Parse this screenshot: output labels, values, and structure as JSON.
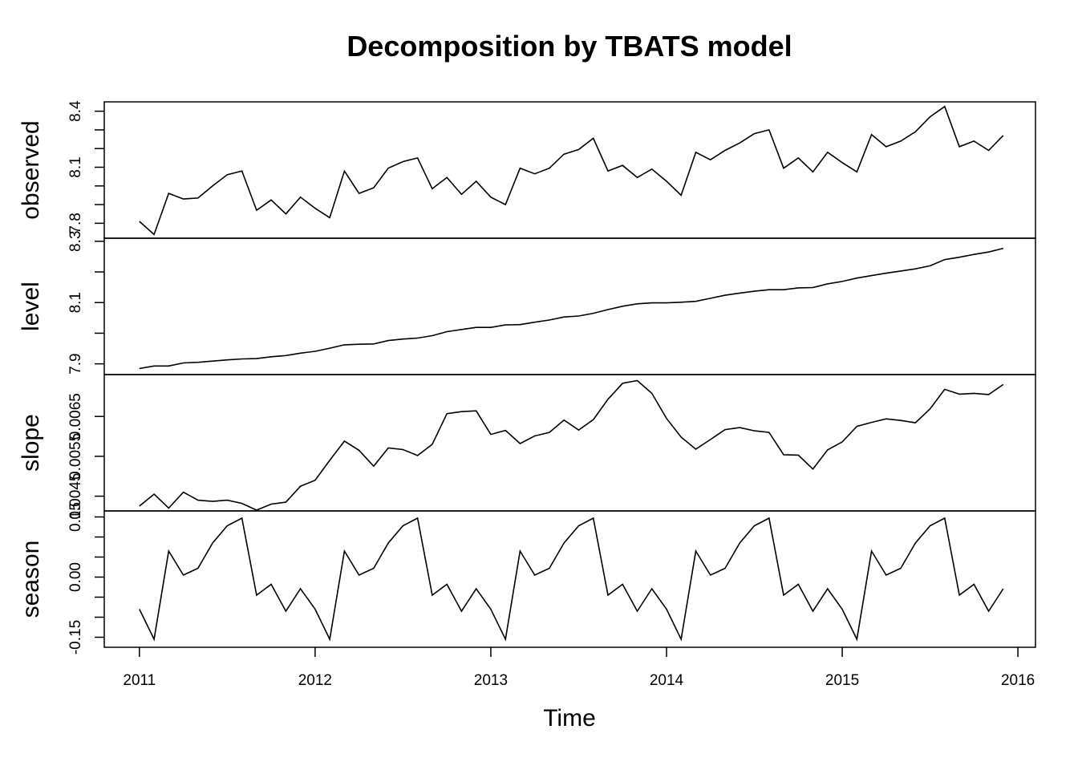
{
  "chart_data": {
    "type": "line",
    "title": "Decomposition by TBATS model",
    "xlabel": "Time",
    "x_ticks": [
      "2011",
      "2012",
      "2013",
      "2014",
      "2015",
      "2016"
    ],
    "xlim": [
      2011,
      2016
    ],
    "x": [
      2011.0,
      2011.0833,
      2011.1667,
      2011.25,
      2011.3333,
      2011.4167,
      2011.5,
      2011.5833,
      2011.6667,
      2011.75,
      2011.8333,
      2011.9167,
      2012.0,
      2012.0833,
      2012.1667,
      2012.25,
      2012.3333,
      2012.4167,
      2012.5,
      2012.5833,
      2012.6667,
      2012.75,
      2012.8333,
      2012.9167,
      2013.0,
      2013.0833,
      2013.1667,
      2013.25,
      2013.3333,
      2013.4167,
      2013.5,
      2013.5833,
      2013.6667,
      2013.75,
      2013.8333,
      2013.9167,
      2014.0,
      2014.0833,
      2014.1667,
      2014.25,
      2014.3333,
      2014.4167,
      2014.5,
      2014.5833,
      2014.6667,
      2014.75,
      2014.8333,
      2014.9167,
      2015.0,
      2015.0833,
      2015.1667,
      2015.25,
      2015.3333,
      2015.4167,
      2015.5,
      2015.5833,
      2015.6667,
      2015.75,
      2015.8333,
      2015.9167
    ],
    "panels": [
      {
        "name": "observed",
        "ylim": [
          7.72,
          8.45
        ],
        "tick_values": [
          7.8,
          7.9,
          8.0,
          8.1,
          8.2,
          8.3,
          8.4
        ],
        "tick_labels": [
          "7.8",
          "",
          "",
          "8.1",
          "",
          "",
          "8.4"
        ],
        "values": [
          7.81,
          7.74,
          7.96,
          7.93,
          7.935,
          8.0,
          8.06,
          8.08,
          7.87,
          7.925,
          7.85,
          7.94,
          7.88,
          7.83,
          8.08,
          7.96,
          7.99,
          8.095,
          8.13,
          8.15,
          7.985,
          8.045,
          7.955,
          8.025,
          7.94,
          7.9,
          8.095,
          8.065,
          8.095,
          8.17,
          8.195,
          8.255,
          8.08,
          8.11,
          8.045,
          8.09,
          8.025,
          7.95,
          8.18,
          8.14,
          8.19,
          8.23,
          8.28,
          8.3,
          8.095,
          8.15,
          8.075,
          8.18,
          8.125,
          8.075,
          8.275,
          8.21,
          8.24,
          8.29,
          8.37,
          8.425,
          8.21,
          8.24,
          8.19,
          8.27
        ]
      },
      {
        "name": "level",
        "ylim": [
          7.865,
          8.31
        ],
        "tick_values": [
          7.9,
          8.0,
          8.1,
          8.2,
          8.3
        ],
        "tick_labels": [
          "7.9",
          "",
          "8.1",
          "",
          "8.3"
        ],
        "values": [
          7.885,
          7.893,
          7.893,
          7.903,
          7.905,
          7.909,
          7.913,
          7.916,
          7.917,
          7.923,
          7.927,
          7.935,
          7.941,
          7.951,
          7.962,
          7.964,
          7.965,
          7.976,
          7.981,
          7.984,
          7.992,
          8.005,
          8.012,
          8.019,
          8.019,
          8.027,
          8.028,
          8.036,
          8.043,
          8.053,
          8.056,
          8.065,
          8.077,
          8.088,
          8.096,
          8.099,
          8.099,
          8.101,
          8.104,
          8.114,
          8.124,
          8.131,
          8.137,
          8.142,
          8.142,
          8.148,
          8.149,
          8.161,
          8.169,
          8.18,
          8.188,
          8.196,
          8.203,
          8.21,
          8.22,
          8.24,
          8.248,
          8.257,
          8.265,
          8.277
        ]
      },
      {
        "name": "slope",
        "ylim": [
          0.00413,
          0.00755
        ],
        "tick_values": [
          0.0045,
          0.0055,
          0.0065
        ],
        "tick_labels": [
          "0.0045",
          "0.0055",
          "0.0065"
        ],
        "values": [
          0.00425,
          0.00455,
          0.0042,
          0.0046,
          0.0044,
          0.00437,
          0.0044,
          0.00432,
          0.00415,
          0.0043,
          0.00435,
          0.00475,
          0.0049,
          0.0054,
          0.00588,
          0.00565,
          0.00525,
          0.00571,
          0.00567,
          0.00552,
          0.0058,
          0.00657,
          0.00662,
          0.00664,
          0.00605,
          0.00615,
          0.00582,
          0.00601,
          0.0061,
          0.00641,
          0.00616,
          0.00642,
          0.00693,
          0.00733,
          0.0074,
          0.00708,
          0.00645,
          0.00598,
          0.00568,
          0.00592,
          0.00617,
          0.00622,
          0.00614,
          0.0061,
          0.00554,
          0.00553,
          0.00518,
          0.00566,
          0.00586,
          0.00625,
          0.00635,
          0.00644,
          0.0064,
          0.00634,
          0.00669,
          0.00718,
          0.00706,
          0.00708,
          0.00705,
          0.0073
        ]
      },
      {
        "name": "season",
        "ylim": [
          -0.175,
          0.165
        ],
        "tick_values": [
          -0.15,
          -0.1,
          -0.05,
          0.0,
          0.05,
          0.1,
          0.15
        ],
        "tick_labels": [
          "-0.15",
          "",
          "",
          "0.00",
          "",
          "",
          "0.15"
        ],
        "values": [
          -0.08,
          -0.155,
          0.065,
          0.005,
          0.022,
          0.085,
          0.128,
          0.147,
          -0.045,
          -0.018,
          -0.085,
          -0.029,
          -0.08,
          -0.155,
          0.065,
          0.005,
          0.022,
          0.085,
          0.128,
          0.147,
          -0.045,
          -0.018,
          -0.085,
          -0.029,
          -0.08,
          -0.155,
          0.065,
          0.005,
          0.022,
          0.085,
          0.128,
          0.147,
          -0.045,
          -0.018,
          -0.085,
          -0.029,
          -0.08,
          -0.155,
          0.065,
          0.005,
          0.022,
          0.085,
          0.128,
          0.147,
          -0.045,
          -0.018,
          -0.085,
          -0.029,
          -0.08,
          -0.155,
          0.065,
          0.005,
          0.022,
          0.085,
          0.128,
          0.147,
          -0.045,
          -0.018,
          -0.085,
          -0.029
        ]
      }
    ]
  }
}
